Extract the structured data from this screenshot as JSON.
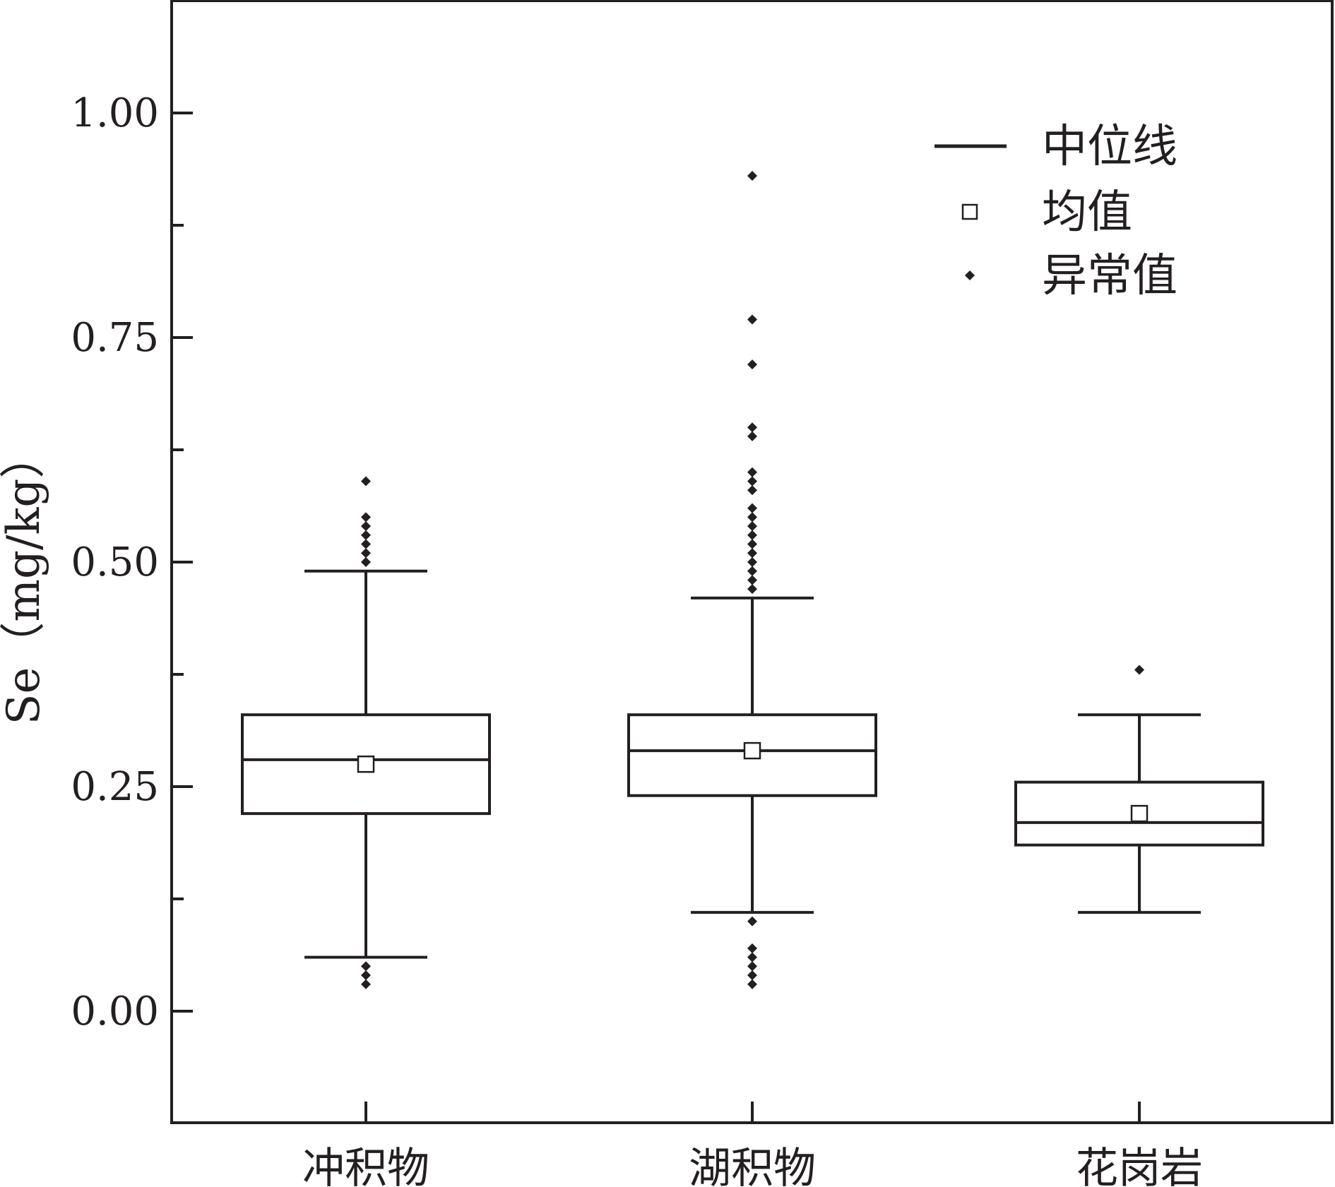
{
  "chart_data": {
    "type": "box",
    "ylabel": "Se（mg/kg）",
    "xlabel": "",
    "ylim": [
      -0.125,
      1.125
    ],
    "yticks": [
      "0.00",
      "0.25",
      "0.50",
      "0.75",
      "1.00"
    ],
    "ytick_values": [
      0,
      0.25,
      0.5,
      0.75,
      1.0
    ],
    "yminor_ticks": [
      0.125,
      0.375,
      0.625,
      0.875
    ],
    "categories": [
      "冲积物",
      "湖积物",
      "花岗岩"
    ],
    "boxes": [
      {
        "category": "冲积物",
        "whisker_low": 0.06,
        "q1": 0.22,
        "median": 0.28,
        "q3": 0.33,
        "whisker_high": 0.49,
        "mean": 0.275,
        "outliers": [
          0.03,
          0.04,
          0.05,
          0.5,
          0.51,
          0.52,
          0.53,
          0.54,
          0.55,
          0.59
        ]
      },
      {
        "category": "湖积物",
        "whisker_low": 0.11,
        "q1": 0.24,
        "median": 0.29,
        "q3": 0.33,
        "whisker_high": 0.46,
        "mean": 0.29,
        "outliers": [
          0.03,
          0.04,
          0.05,
          0.06,
          0.07,
          0.1,
          0.47,
          0.48,
          0.49,
          0.5,
          0.51,
          0.52,
          0.53,
          0.54,
          0.55,
          0.56,
          0.58,
          0.59,
          0.6,
          0.64,
          0.65,
          0.72,
          0.77,
          0.93
        ]
      },
      {
        "category": "花岗岩",
        "whisker_low": 0.11,
        "q1": 0.185,
        "median": 0.21,
        "q3": 0.255,
        "whisker_high": 0.33,
        "mean": 0.22,
        "outliers": [
          0.38
        ]
      }
    ],
    "legend": {
      "position": "top-right",
      "items": [
        {
          "label": "中位线",
          "symbol": "line"
        },
        {
          "label": "均值",
          "symbol": "open-square"
        },
        {
          "label": "异常值",
          "symbol": "diamond"
        }
      ]
    },
    "grid": false,
    "colors": {
      "ink": "#231f20",
      "background": "#ffffff"
    }
  }
}
